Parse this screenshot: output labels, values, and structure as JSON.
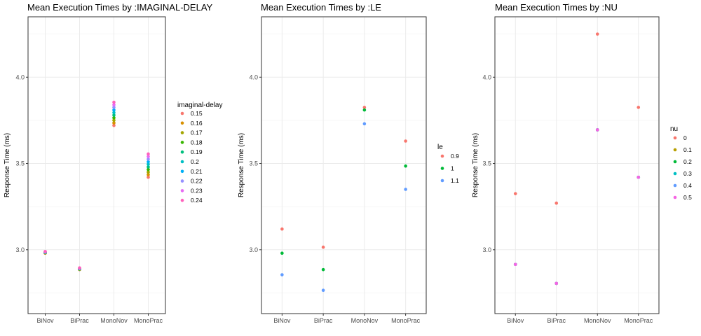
{
  "chart_data": [
    {
      "type": "scatter",
      "title": "Mean Execution Times by :IMAGINAL-DELAY",
      "xlabel": "",
      "ylabel": "Response Time (ms)",
      "categories": [
        "BiNov",
        "BiPrac",
        "MonoNov",
        "MonoPrac"
      ],
      "ylim": [
        2.63,
        4.35
      ],
      "yticks": [
        3.0,
        3.5,
        4.0
      ],
      "ytick_labels": [
        "3.0",
        "3.5",
        "4.0"
      ],
      "grid": true,
      "legend": {
        "title": "imaginal-delay",
        "position": "right"
      },
      "series": [
        {
          "name": "0.15",
          "color": "#F8766D",
          "values": [
            2.98,
            2.885,
            3.72,
            3.42
          ]
        },
        {
          "name": "0.16",
          "color": "#D89000",
          "values": [
            2.981,
            2.886,
            3.735,
            3.435
          ]
        },
        {
          "name": "0.17",
          "color": "#A3A500",
          "values": [
            2.982,
            2.887,
            3.75,
            3.45
          ]
        },
        {
          "name": "0.18",
          "color": "#39B600",
          "values": [
            2.983,
            2.888,
            3.765,
            3.465
          ]
        },
        {
          "name": "0.19",
          "color": "#00BF7D",
          "values": [
            2.984,
            2.889,
            3.78,
            3.48
          ]
        },
        {
          "name": "0.2",
          "color": "#00BFC4",
          "values": [
            2.985,
            2.89,
            3.795,
            3.495
          ]
        },
        {
          "name": "0.21",
          "color": "#00B0F6",
          "values": [
            2.986,
            2.891,
            3.81,
            3.51
          ]
        },
        {
          "name": "0.22",
          "color": "#9590FF",
          "values": [
            2.987,
            2.892,
            3.825,
            3.525
          ]
        },
        {
          "name": "0.23",
          "color": "#E76BF3",
          "values": [
            2.988,
            2.893,
            3.84,
            3.54
          ]
        },
        {
          "name": "0.24",
          "color": "#FF62BC",
          "values": [
            2.99,
            2.895,
            3.855,
            3.555
          ]
        }
      ]
    },
    {
      "type": "scatter",
      "title": "Mean Execution Times by :LE",
      "xlabel": "",
      "ylabel": "Response Time (ms)",
      "categories": [
        "BiNov",
        "BiPrac",
        "MonoNov",
        "MonoPrac"
      ],
      "ylim": [
        2.63,
        4.35
      ],
      "yticks": [
        3.0,
        3.5,
        4.0
      ],
      "ytick_labels": [
        "3.0",
        "3.5",
        "4.0"
      ],
      "grid": true,
      "legend": {
        "title": "le",
        "position": "right"
      },
      "series": [
        {
          "name": "0.9",
          "color": "#F8766D",
          "values": [
            3.12,
            3.015,
            3.825,
            3.63
          ]
        },
        {
          "name": "1",
          "color": "#00BA38",
          "values": [
            2.98,
            2.885,
            3.81,
            3.485
          ]
        },
        {
          "name": "1.1",
          "color": "#619CFF",
          "values": [
            2.855,
            2.765,
            3.73,
            3.35
          ]
        }
      ]
    },
    {
      "type": "scatter",
      "title": "Mean Execution Times by :NU",
      "xlabel": "",
      "ylabel": "Response Time (ms)",
      "categories": [
        "BiNov",
        "BiPrac",
        "MonoNov",
        "MonoPrac"
      ],
      "ylim": [
        2.63,
        4.35
      ],
      "yticks": [
        3.0,
        3.5,
        4.0
      ],
      "ytick_labels": [
        "3.0",
        "3.5",
        "4.0"
      ],
      "grid": true,
      "legend": {
        "title": "nu",
        "position": "right"
      },
      "series": [
        {
          "name": "0",
          "color": "#F8766D",
          "values": [
            3.325,
            3.27,
            4.25,
            3.825
          ]
        },
        {
          "name": "0.1",
          "color": "#B79F00",
          "values": [
            2.915,
            2.805,
            3.695,
            3.42
          ]
        },
        {
          "name": "0.2",
          "color": "#00BA38",
          "values": [
            2.915,
            2.805,
            3.695,
            3.42
          ]
        },
        {
          "name": "0.3",
          "color": "#00BFC4",
          "values": [
            2.915,
            2.805,
            3.695,
            3.42
          ]
        },
        {
          "name": "0.4",
          "color": "#619CFF",
          "values": [
            2.915,
            2.805,
            3.695,
            3.42
          ]
        },
        {
          "name": "0.5",
          "color": "#F564E3",
          "values": [
            2.915,
            2.805,
            3.695,
            3.42
          ]
        }
      ]
    }
  ]
}
